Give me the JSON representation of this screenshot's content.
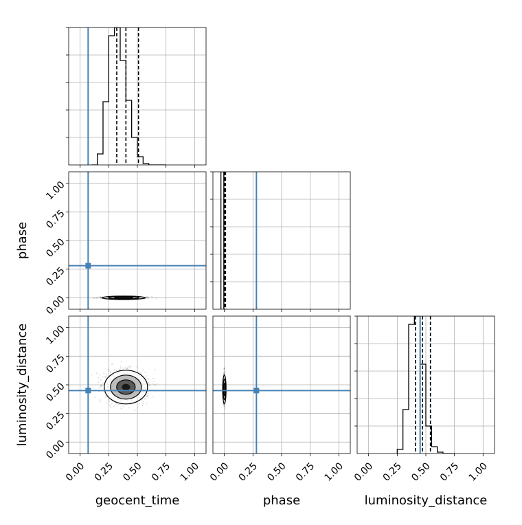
{
  "chart_data": {
    "type": "corner",
    "parameters": [
      "geocent_time",
      "phase",
      "luminosity_distance"
    ],
    "axis_labels": {
      "geocent_time": "geocent_time",
      "phase": "phase",
      "luminosity_distance": "luminosity_distance"
    },
    "range": [
      -0.1,
      1.1
    ],
    "ticks": [
      0.0,
      0.25,
      0.5,
      0.75,
      1.0
    ],
    "tick_labels": [
      "0.00",
      "0.25",
      "0.50",
      "0.75",
      "1.00"
    ],
    "grid": true,
    "colors": {
      "truth": "#4682b4",
      "hist": "#000000",
      "quantile": "#000000",
      "samples": "#555555"
    },
    "truths": {
      "geocent_time": 0.07,
      "phase": 0.28,
      "luminosity_distance": 0.45
    },
    "marginals": {
      "geocent_time": {
        "bin_edges": [
          0.1,
          0.15,
          0.2,
          0.25,
          0.3,
          0.35,
          0.4,
          0.45,
          0.5,
          0.55,
          0.6,
          0.65,
          0.7,
          0.75
        ],
        "counts": [
          0,
          0.08,
          0.46,
          0.94,
          1.0,
          0.76,
          0.47,
          0.2,
          0.06,
          0.01,
          0,
          0,
          0
        ],
        "quantiles": [
          0.32,
          0.4,
          0.51
        ]
      },
      "phase": {
        "bin_edges": [
          -0.03,
          -0.005,
          0.02
        ],
        "counts": [
          1.0,
          0.0
        ],
        "quantiles": [
          0.0,
          0.005,
          0.01
        ]
      },
      "luminosity_distance": {
        "bin_edges": [
          0.25,
          0.3,
          0.35,
          0.4,
          0.45,
          0.5,
          0.55,
          0.6,
          0.65,
          0.7,
          0.75
        ],
        "counts": [
          0.03,
          0.32,
          0.94,
          1.0,
          0.65,
          0.2,
          0.05,
          0.01,
          0,
          0
        ],
        "quantiles": [
          0.41,
          0.47,
          0.54
        ]
      }
    },
    "joint": [
      {
        "x": "geocent_time",
        "y": "phase",
        "center": [
          0.38,
          0.0
        ],
        "spread": [
          0.09,
          0.004
        ]
      },
      {
        "x": "geocent_time",
        "y": "luminosity_distance",
        "center": [
          0.4,
          0.48
        ],
        "spread": [
          0.09,
          0.07
        ]
      },
      {
        "x": "phase",
        "y": "luminosity_distance",
        "center": [
          0.0,
          0.46
        ],
        "spread": [
          0.004,
          0.06
        ]
      }
    ]
  }
}
